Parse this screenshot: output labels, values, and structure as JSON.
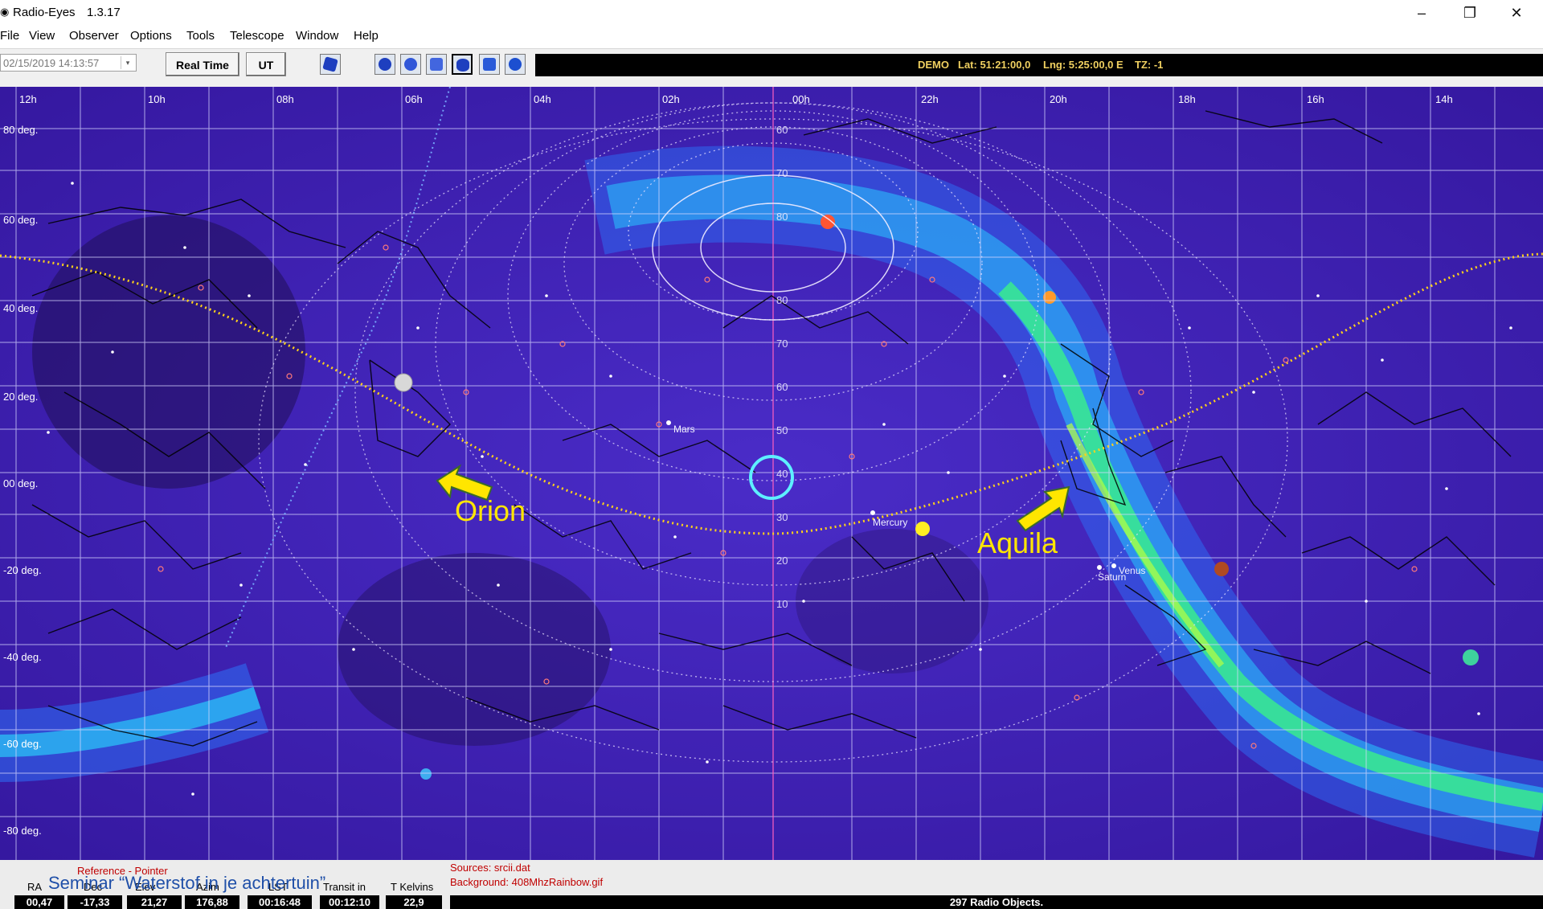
{
  "window": {
    "title": "Radio-Eyes",
    "version": "1.3.17",
    "minimize": "–",
    "restore": "❐",
    "close": "✕"
  },
  "menu": [
    "File",
    "View",
    "Observer",
    "Options",
    "Tools",
    "Telescope",
    "Window",
    "Help"
  ],
  "toolbar": {
    "date_value": "02/15/2019  14:13:57",
    "date_arrow": "▾",
    "realtime_label": "Real Time",
    "ut_label": "UT",
    "tool_icons": [
      "sky-view-icon",
      "rotate-icon",
      "target-icon",
      "zoom-box-icon",
      "ellipse-view-icon",
      "panel-view-icon",
      "globe-view-icon"
    ]
  },
  "status": {
    "mode": "DEMO",
    "lat": "Lat: 51:21:00,0",
    "lng": "Lng: 5:25:00,0 E",
    "tz": "TZ: -1"
  },
  "skymap": {
    "ra_labels": [
      "12h",
      "10h",
      "08h",
      "06h",
      "04h",
      "02h",
      "00h",
      "22h",
      "20h",
      "18h",
      "16h",
      "14h"
    ],
    "dec_labels": [
      "80 deg.",
      "60 deg.",
      "40 deg.",
      "20 deg.",
      "00 deg.",
      "-20 deg.",
      "-40 deg.",
      "-60 deg.",
      "-80 deg."
    ],
    "alt_labels": [
      "60",
      "70",
      "80",
      "80",
      "70",
      "60",
      "50",
      "40",
      "30",
      "20",
      "10"
    ],
    "planets": [
      "Mars",
      "Mercury",
      "Venus",
      "Saturn"
    ],
    "annotations": [
      {
        "label": "Orion",
        "color": "#ffe600"
      },
      {
        "label": "Aquila",
        "color": "#ffe600"
      }
    ],
    "colors": {
      "background": "#3a1fa8",
      "milky_way": "#2a7cff",
      "milky_way_core": "#40ff80",
      "ecliptic": "#ffd21a",
      "pointer": "#5ef0ff"
    }
  },
  "bottom": {
    "reference": "Reference - Pointer",
    "sources": "Sources: srcii.dat",
    "background": "Background: 408MhzRainbow.gif",
    "seminar": "Seminar “Waterstof in je achtertuin”",
    "columns": [
      {
        "label": "RA",
        "value": "00,47"
      },
      {
        "label": "Dec",
        "value": "-17,33"
      },
      {
        "label": "Elev",
        "value": "21,27"
      },
      {
        "label": "Azim",
        "value": "176,88"
      },
      {
        "label": "LST",
        "value": "00:16:48"
      },
      {
        "label": "Transit in",
        "value": "00:12:10"
      },
      {
        "label": "T Kelvins",
        "value": "22,9"
      }
    ],
    "radio_objects": "297 Radio Objects."
  }
}
